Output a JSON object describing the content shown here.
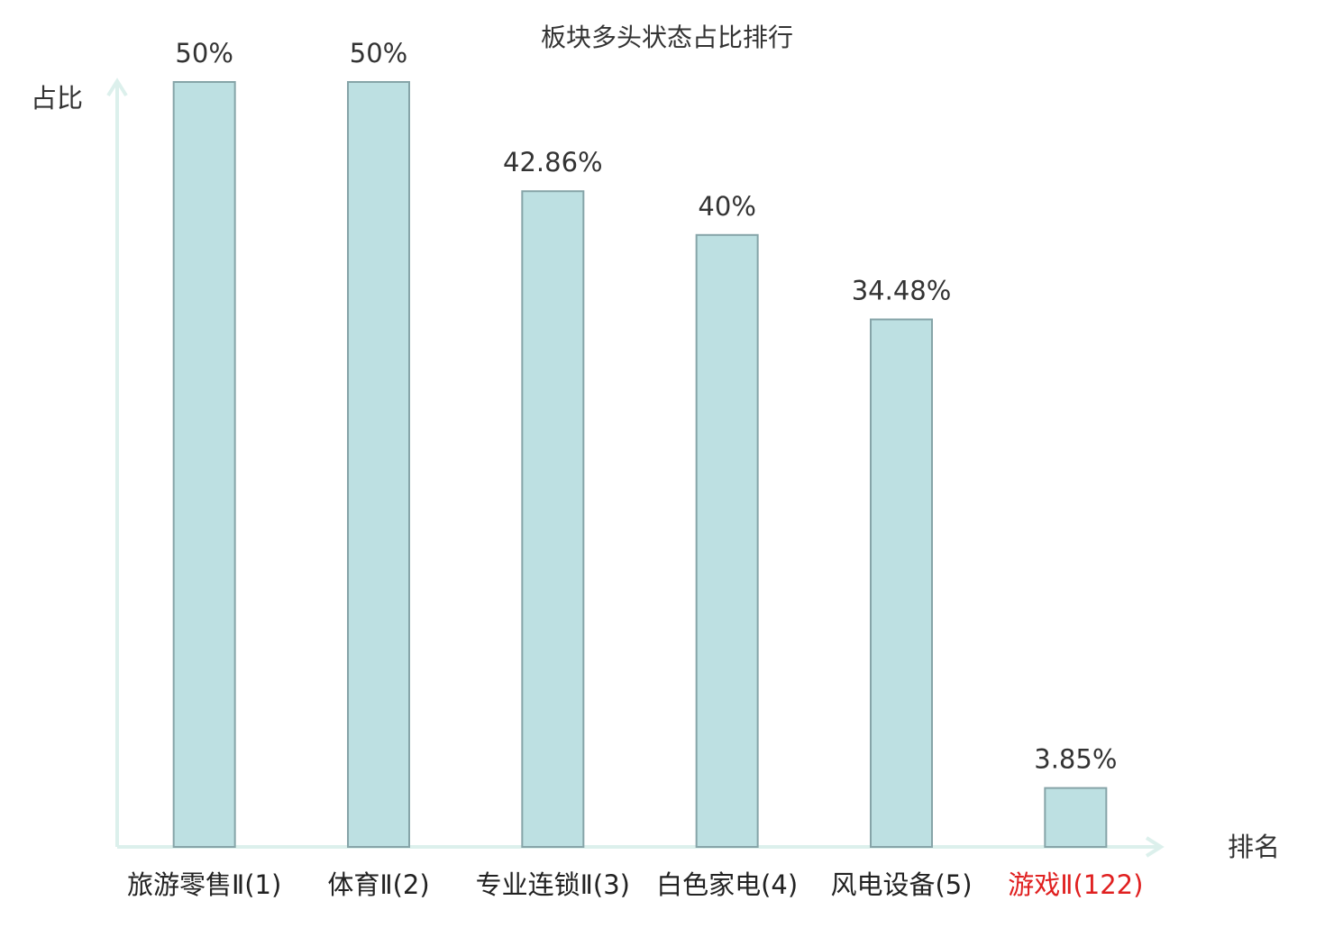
{
  "chart_data": {
    "type": "bar",
    "title": "板块多头状态占比排行",
    "y_label": "占比",
    "x_label": "排名",
    "categories": [
      "旅游零售Ⅱ(1)",
      "体育Ⅱ(2)",
      "专业连锁Ⅱ(3)",
      "白色家电(4)",
      "风电设备(5)",
      "游戏Ⅱ(122)"
    ],
    "values": [
      50,
      50,
      42.86,
      40,
      34.48,
      3.85
    ],
    "value_labels": [
      "50%",
      "50%",
      "42.86%",
      "40%",
      "34.48%",
      "3.85%"
    ],
    "color": "#bde0e2",
    "edge_color": "#86a4a8",
    "label_colors": [
      "#222222",
      "#222222",
      "#222222",
      "#222222",
      "#222222",
      "#e02020"
    ],
    "ylim": [
      0,
      50
    ]
  }
}
